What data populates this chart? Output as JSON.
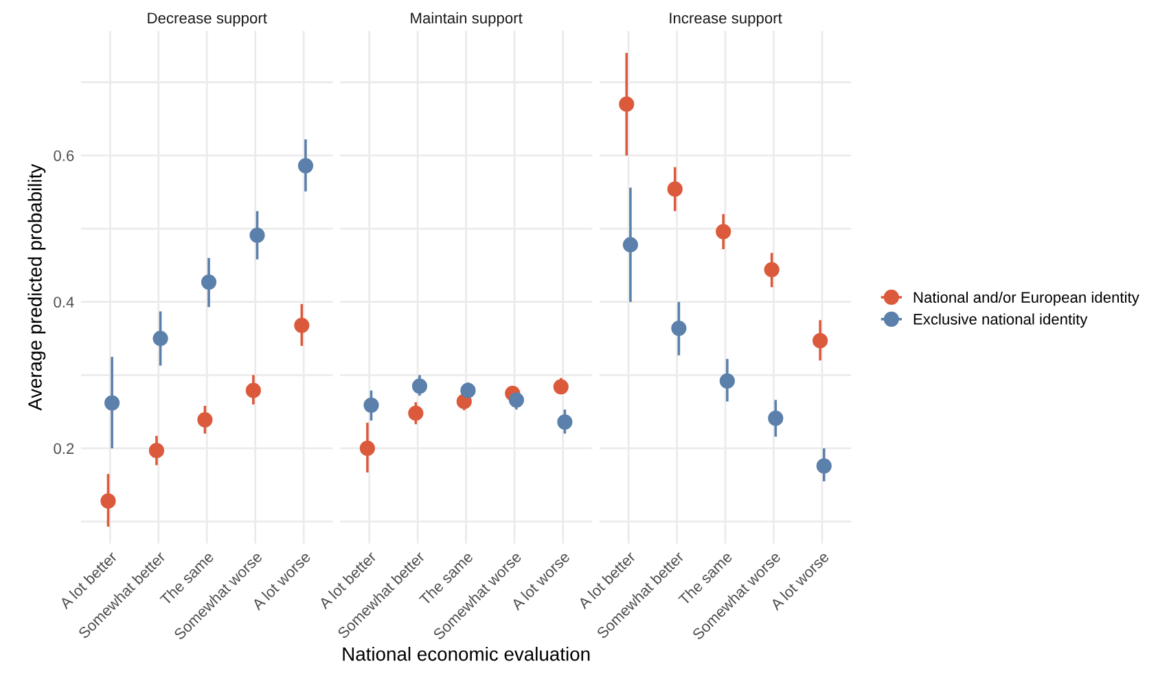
{
  "chart_data": [
    {
      "type": "scatter",
      "title": "Decrease support",
      "ylabel": "Average predicted probability",
      "categories": [
        "A lot better",
        "Somewhat better",
        "The same",
        "Somewhat worse",
        "A lot worse"
      ],
      "series": [
        {
          "name": "National and/or European identity",
          "color": "#dc5a3c",
          "values": [
            0.128,
            0.197,
            0.239,
            0.279,
            0.368
          ],
          "errors": [
            [
              0.093,
              0.165
            ],
            [
              0.177,
              0.217
            ],
            [
              0.22,
              0.258
            ],
            [
              0.26,
              0.3
            ],
            [
              0.34,
              0.397
            ]
          ]
        },
        {
          "name": "Exclusive national identity",
          "color": "#5b80ab",
          "values": [
            0.262,
            0.35,
            0.427,
            0.491,
            0.586
          ],
          "errors": [
            [
              0.2,
              0.325
            ],
            [
              0.313,
              0.387
            ],
            [
              0.393,
              0.46
            ],
            [
              0.458,
              0.524
            ],
            [
              0.551,
              0.622
            ]
          ]
        }
      ],
      "ylim": [
        0.07,
        0.77
      ],
      "yticks": [
        {
          "value": 0.1,
          "label": null
        },
        0.2,
        {
          "value": 0.3,
          "label": null
        },
        0.4,
        {
          "value": 0.5,
          "label": null
        },
        0.6,
        {
          "value": 0.7,
          "label": null
        }
      ],
      "grid": true,
      "marker": "circle",
      "legend": "right"
    },
    {
      "type": "scatter",
      "title": "Maintain support",
      "xlabel": "National economic evaluation",
      "categories": [
        "A lot better",
        "Somewhat better",
        "The same",
        "Somewhat worse",
        "A lot worse"
      ],
      "series": [
        {
          "color": "#dc5a3c",
          "values": [
            0.2,
            0.248,
            0.264,
            0.275,
            0.284
          ],
          "errors": [
            [
              0.167,
              0.235
            ],
            [
              0.233,
              0.263
            ],
            [
              0.252,
              0.277
            ],
            [
              0.265,
              0.285
            ],
            [
              0.274,
              0.296
            ]
          ]
        },
        {
          "color": "#5b80ab",
          "values": [
            0.259,
            0.285,
            0.279,
            0.266,
            0.236
          ],
          "errors": [
            [
              0.238,
              0.279
            ],
            [
              0.272,
              0.3
            ],
            [
              0.267,
              0.29
            ],
            [
              0.253,
              0.278
            ],
            [
              0.22,
              0.253
            ]
          ]
        }
      ],
      "ylim": [
        0.07,
        0.77
      ],
      "yticks": [
        {
          "value": 0.1,
          "label": null
        },
        0.2,
        {
          "value": 0.3,
          "label": null
        },
        0.4,
        {
          "value": 0.5,
          "label": null
        },
        0.6,
        {
          "value": 0.7,
          "label": null
        }
      ],
      "tick_labels": "x",
      "grid": true,
      "marker": "circle"
    },
    {
      "type": "scatter",
      "title": "Increase support",
      "categories": [
        "A lot better",
        "Somewhat better",
        "The same",
        "Somewhat worse",
        "A lot worse"
      ],
      "series": [
        {
          "color": "#dc5a3c",
          "values": [
            0.67,
            0.554,
            0.496,
            0.444,
            0.347
          ],
          "errors": [
            [
              0.6,
              0.74
            ],
            [
              0.524,
              0.584
            ],
            [
              0.472,
              0.52
            ],
            [
              0.42,
              0.467
            ],
            [
              0.32,
              0.375
            ]
          ]
        },
        {
          "color": "#5b80ab",
          "values": [
            0.478,
            0.364,
            0.292,
            0.241,
            0.176
          ],
          "errors": [
            [
              0.4,
              0.556
            ],
            [
              0.327,
              0.4
            ],
            [
              0.264,
              0.322
            ],
            [
              0.216,
              0.266
            ],
            [
              0.155,
              0.2
            ]
          ]
        }
      ],
      "ylim": [
        0.07,
        0.77
      ],
      "yticks": [
        {
          "value": 0.1,
          "label": null
        },
        0.2,
        {
          "value": 0.3,
          "label": null
        },
        0.4,
        {
          "value": 0.5,
          "label": null
        },
        0.6,
        {
          "value": 0.7,
          "label": null
        }
      ],
      "tick_labels": "x",
      "grid": true,
      "marker": "circle"
    }
  ]
}
